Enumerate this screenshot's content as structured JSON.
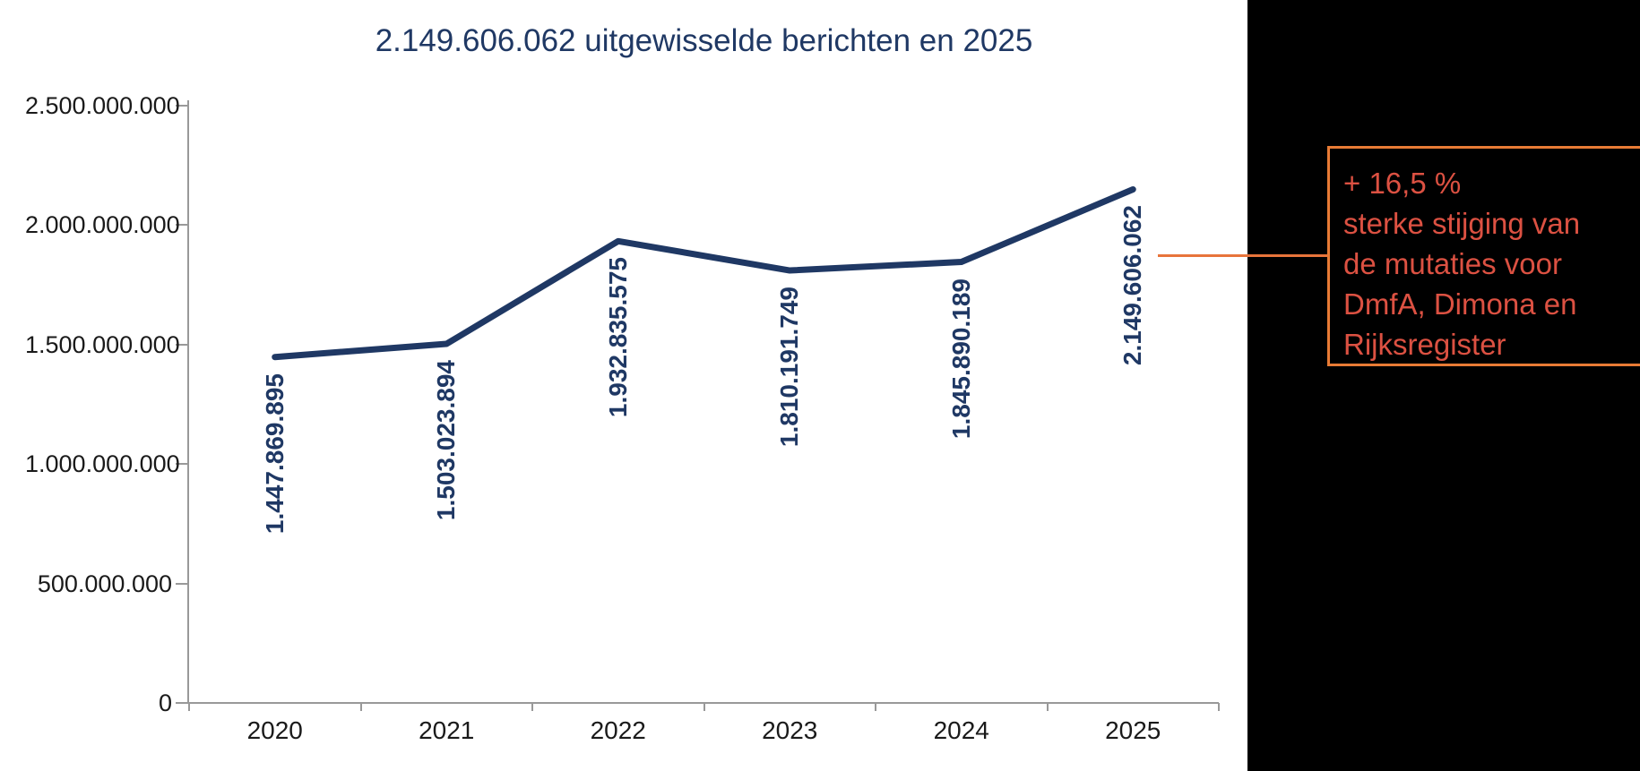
{
  "title_note": "",
  "chart_data": {
    "type": "line",
    "title": "2.149.606.062 uitgewisselde berichten en 2025",
    "categories": [
      "2020",
      "2021",
      "2022",
      "2023",
      "2024",
      "2025"
    ],
    "series": [
      {
        "name": "uitgewisselde berichten",
        "values": [
          1447869895,
          1503023894,
          1932835575,
          1810191749,
          1845890189,
          2149606062
        ]
      }
    ],
    "point_labels": [
      "1.447.869.895",
      "1.503.023.894",
      "1.932.835.575",
      "1.810.191.749",
      "1.845.890.189",
      "2.149.606.062"
    ],
    "y_tick_labels": [
      "2.500.000.000",
      "2.000.000.000",
      "1.500.000.000",
      "1.000.000.000",
      "500.000.000",
      "0"
    ],
    "y_tick_values": [
      2500000000,
      2000000000,
      1500000000,
      1000000000,
      500000000,
      0
    ],
    "ylim": [
      0,
      2500000000
    ],
    "grid": false,
    "legend": "none",
    "xlabel": "",
    "ylabel": ""
  },
  "annotation": {
    "lines": [
      "+ 16,5 %",
      "sterke stijging van",
      "de mutaties voor",
      "DmfA, Dimona en",
      "Rijksregister"
    ]
  },
  "colors": {
    "navy": "#1F3864",
    "axis": "#999999",
    "ticktext": "#1A1A1A",
    "panel": "#000000",
    "calloutborder": "#E87B35",
    "callouttext": "#DC5142",
    "leader": "#E8743B",
    "background": "#FFFFFF"
  }
}
